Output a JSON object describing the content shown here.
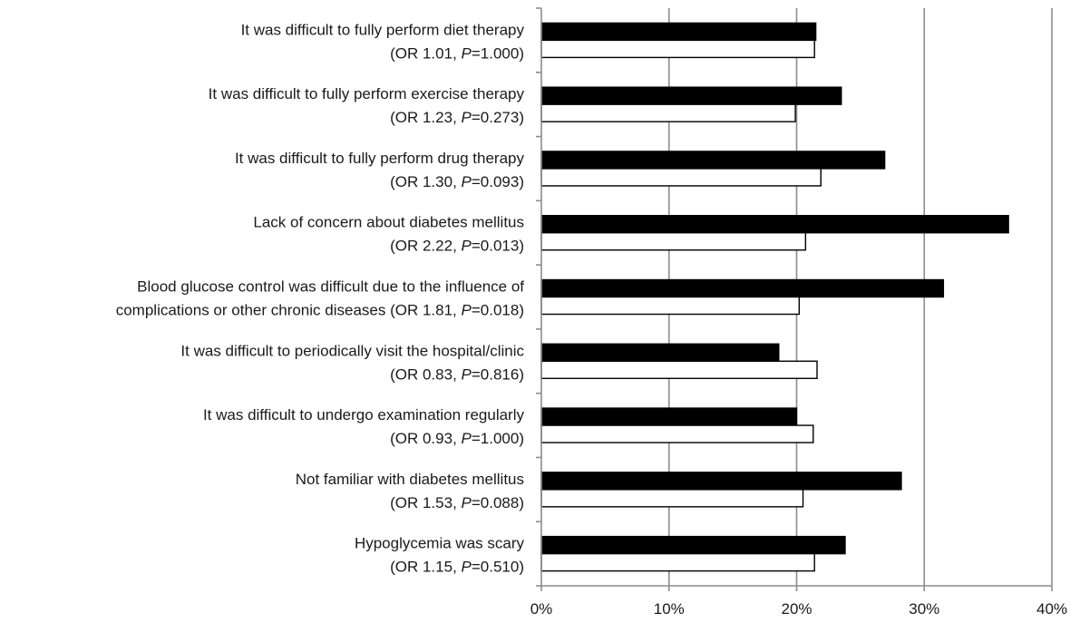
{
  "chart_data": {
    "type": "bar",
    "orientation": "horizontal",
    "categories": [
      {
        "line1": "It was difficult to fully perform diet therapy",
        "or_text": "(OR 1.01, ",
        "p_label": "P",
        "p_text": "=1.000)"
      },
      {
        "line1": "It was difficult to fully perform exercise therapy",
        "or_text": "(OR 1.23, ",
        "p_label": "P",
        "p_text": "=0.273)"
      },
      {
        "line1": "It was difficult to fully perform drug therapy",
        "or_text": "(OR 1.30, ",
        "p_label": "P",
        "p_text": "=0.093)"
      },
      {
        "line1": "Lack of concern about diabetes mellitus",
        "or_text": "(OR 2.22, ",
        "p_label": "P",
        "p_text": "=0.013)"
      },
      {
        "line1": "Blood glucose control was difficult due to the influence of",
        "or_text": "complications or other chronic diseases (OR 1.81, ",
        "p_label": "P",
        "p_text": "=0.018)"
      },
      {
        "line1": "It was difficult to periodically visit the hospital/clinic",
        "or_text": "(OR 0.83, ",
        "p_label": "P",
        "p_text": "=0.816)"
      },
      {
        "line1": "It was difficult to undergo examination regularly",
        "or_text": "(OR 0.93, ",
        "p_label": "P",
        "p_text": "=1.000)"
      },
      {
        "line1": "Not familiar with diabetes mellitus",
        "or_text": "(OR 1.53, ",
        "p_label": "P",
        "p_text": "=0.088)"
      },
      {
        "line1": "Hypoglycemia was scary",
        "or_text": "(OR 1.15, ",
        "p_label": "P",
        "p_text": "=0.510)"
      }
    ],
    "series": [
      {
        "color": "#000000",
        "values": [
          21.5,
          23.5,
          26.9,
          36.6,
          31.5,
          18.6,
          20.0,
          28.2,
          23.8
        ]
      },
      {
        "color": "#ffffff",
        "values": [
          21.4,
          19.9,
          21.9,
          20.7,
          20.2,
          21.6,
          21.3,
          20.5,
          21.4
        ]
      }
    ],
    "xlim": [
      0,
      40
    ],
    "xticks": [
      0,
      10,
      20,
      30,
      40
    ],
    "xtick_labels": [
      "0%",
      "10%",
      "20%",
      "30%",
      "40%"
    ],
    "grid": "vertical",
    "legend": "none",
    "title": "",
    "xlabel": "",
    "ylabel": ""
  }
}
